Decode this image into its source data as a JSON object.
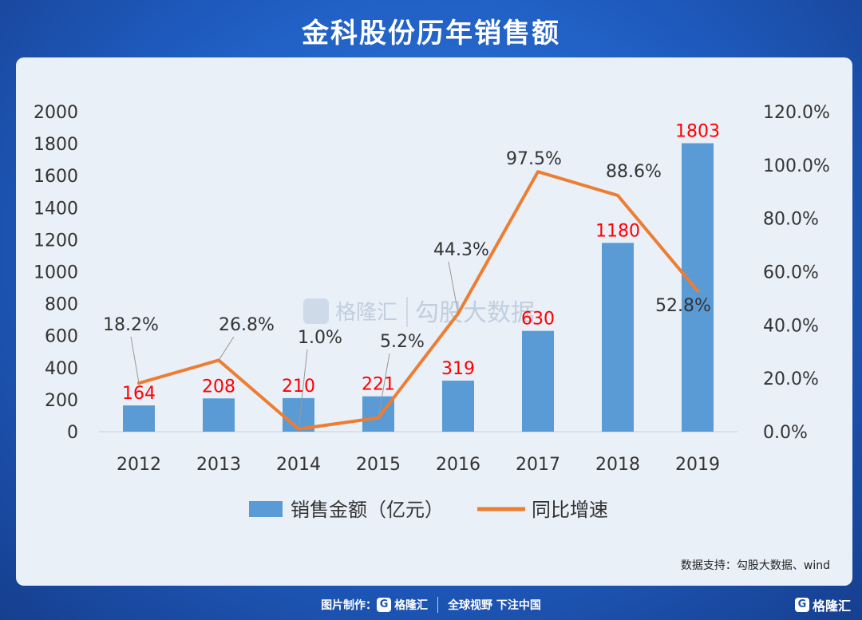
{
  "title": "金科股份历年销售额",
  "source_note": "数据支持：勾股大数据、wind",
  "watermark": {
    "brand": "格隆汇",
    "sub": "勾股大数据"
  },
  "footer": {
    "made_by_label": "图片制作：",
    "brand": "格隆汇",
    "slogan": "全球视野 下注中国"
  },
  "corner_brand": "格隆汇",
  "colors": {
    "bar": "#5b9bd5",
    "line": "#ed7d31",
    "value_label": "#ff0000"
  },
  "chart_data": {
    "type": "bar",
    "categories": [
      "2012",
      "2013",
      "2014",
      "2015",
      "2016",
      "2017",
      "2018",
      "2019"
    ],
    "series": [
      {
        "name": "销售金额（亿元）",
        "type": "bar",
        "axis": "left",
        "values": [
          164,
          208,
          210,
          221,
          319,
          630,
          1180,
          1803
        ],
        "labels": [
          "164",
          "208",
          "210",
          "221",
          "319",
          "630",
          "1180",
          "1803"
        ]
      },
      {
        "name": "同比增速",
        "type": "line",
        "axis": "right",
        "values": [
          18.2,
          26.8,
          1.0,
          5.2,
          44.3,
          97.5,
          88.6,
          52.8
        ],
        "labels": [
          "18.2%",
          "26.8%",
          "1.0%",
          "5.2%",
          "44.3%",
          "97.5%",
          "88.6%",
          "52.8%"
        ]
      }
    ],
    "y_left": {
      "min": 0,
      "max": 2000,
      "ticks": [
        "0",
        "200",
        "400",
        "600",
        "800",
        "1000",
        "1200",
        "1400",
        "1600",
        "1800",
        "2000"
      ]
    },
    "y_right": {
      "min": 0,
      "max": 120,
      "ticks": [
        "0.0%",
        "20.0%",
        "40.0%",
        "60.0%",
        "80.0%",
        "100.0%",
        "120.0%"
      ]
    },
    "legend": [
      "销售金额（亿元）",
      "同比增速"
    ],
    "legend_position": "bottom"
  }
}
